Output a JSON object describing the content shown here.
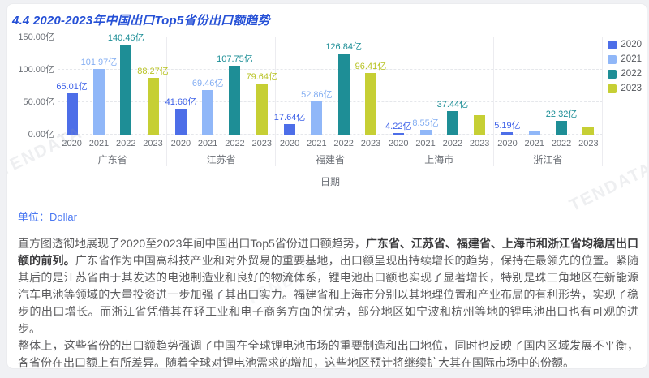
{
  "title": "4.4 2020-2023年中国出口Top5省份出口额趋势",
  "unit": {
    "label": "单位：",
    "value": "Dollar"
  },
  "watermark_text": "TENDATA",
  "chart_data": {
    "type": "bar",
    "title": "4.4 2020-2023年中国出口Top5省份出口额趋势",
    "categories": [
      "广东省",
      "江苏省",
      "福建省",
      "上海市",
      "浙江省"
    ],
    "sub_categories": [
      "2020",
      "2021",
      "2022",
      "2023"
    ],
    "xlabel": "日期",
    "ylabel": "",
    "unit_suffix": "亿",
    "ylim": [
      0,
      150
    ],
    "y_ticks": [
      {
        "value": 150,
        "label": "150.00亿"
      },
      {
        "value": 100,
        "label": "100.00亿"
      },
      {
        "value": 50,
        "label": "50.00亿"
      },
      {
        "value": 0,
        "label": "0.00亿"
      }
    ],
    "grid": true,
    "legend_position": "right",
    "series": [
      {
        "name": "2020",
        "color": "#4d6ee8",
        "label_color": "#3f62e8",
        "values": [
          65.01,
          41.6,
          17.64,
          4.22,
          5.19
        ],
        "labels": [
          "65.01亿",
          "41.60亿",
          "17.64亿",
          "4.22亿",
          "5.19亿"
        ]
      },
      {
        "name": "2021",
        "color": "#90b7f8",
        "label_color": "#84aef2",
        "values": [
          101.97,
          69.46,
          52.86,
          8.55,
          7.5
        ],
        "labels": [
          "101.97亿",
          "69.46亿",
          "52.86亿",
          "8.55亿",
          ""
        ]
      },
      {
        "name": "2022",
        "color": "#1e8e96",
        "label_color": "#1c8e96",
        "values": [
          140.46,
          107.75,
          126.84,
          37.44,
          22.32
        ],
        "labels": [
          "140.46亿",
          "107.75亿",
          "126.84亿",
          "37.44亿",
          "22.32亿"
        ]
      },
      {
        "name": "2023",
        "color": "#c6cf34",
        "label_color": "#b9c325",
        "values": [
          88.27,
          79.64,
          96.41,
          31.0,
          14.0
        ],
        "labels": [
          "88.27亿",
          "79.64亿",
          "96.41亿",
          "",
          ""
        ]
      }
    ]
  },
  "paragraphs": [
    {
      "segments": [
        {
          "text": "直方图透彻地展现了2020至2023年间中国出口Top5省份进口额趋势，",
          "bold": false
        },
        {
          "text": "广东省、江苏省、福建省、上海市和浙江省均稳居出口额的前列。",
          "bold": true
        },
        {
          "text": "广东省作为中国高科技产业和对外贸易的重要基地，出口额呈现出持续增长的趋势，保持在最领先的位置。紧随其后的是江苏省由于其发达的电池制造业和良好的物流体系，锂电池出口额也实现了显著增长，特别是珠三角地区在新能源汽车电池等领域的大量投资进一步加强了其出口实力。福建省和上海市分别以其地理位置和产业布局的有利形势，实现了稳步的出口增长。而浙江省凭借其在轻工业和电子商务方面的优势，部分地区如宁波和杭州等地的锂电池出口也有可观的进步。",
          "bold": false
        }
      ]
    },
    {
      "segments": [
        {
          "text": "整体上，这些省份的出口额趋势强调了中国在全球锂电池市场的重要制造和出口地位，同时也反映了国内区域发展不平衡，各省份在出口额上有所差异。随着全球对锂电池需求的增加，这些地区预计将继续扩大其在国际市场中的份额。",
          "bold": false
        }
      ]
    }
  ]
}
